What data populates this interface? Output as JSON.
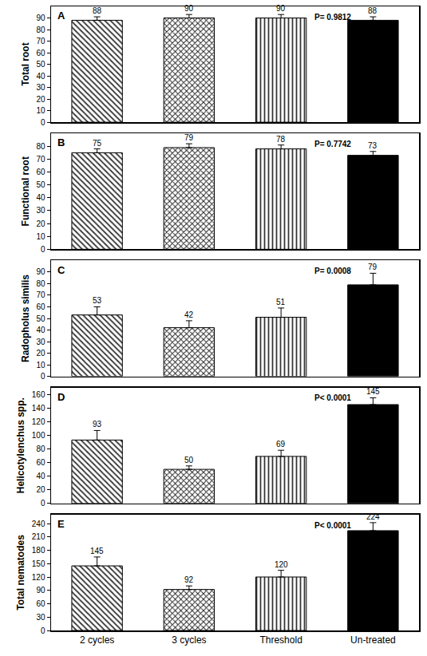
{
  "chart_data": [
    {
      "type": "bar",
      "title": "A",
      "y_label": "Total root",
      "categories": [
        "2 cycles",
        "3 cycles",
        "Threshold",
        "Un-treated"
      ],
      "values": [
        88,
        90,
        90,
        88
      ],
      "errors": [
        3,
        3,
        3,
        3
      ],
      "colors": [
        "#333333",
        "#222222",
        "#333333",
        "#000000"
      ],
      "ylim": [
        0,
        100
      ],
      "yticks": [
        0,
        10,
        20,
        30,
        40,
        50,
        60,
        70,
        80,
        90
      ],
      "annotations": [
        "P= 0.9812"
      ],
      "data_labels": true,
      "tick_labels": "y",
      "grid": false
    },
    {
      "type": "bar",
      "title": "B",
      "y_label": "Functional root",
      "categories": [
        "2 cycles",
        "3 cycles",
        "Threshold",
        "Un-treated"
      ],
      "values": [
        75,
        79,
        78,
        73
      ],
      "errors": [
        3,
        3,
        3,
        3
      ],
      "colors": [
        "#333333",
        "#222222",
        "#333333",
        "#000000"
      ],
      "ylim": [
        0,
        90
      ],
      "yticks": [
        0,
        10,
        20,
        30,
        40,
        50,
        60,
        70,
        80
      ],
      "annotations": [
        "P= 0.7742"
      ],
      "data_labels": true,
      "tick_labels": "y",
      "grid": false
    },
    {
      "type": "bar",
      "title": "C",
      "y_label": "Radopholus similis",
      "categories": [
        "2 cycles",
        "3 cycles",
        "Threshold",
        "Un-treated"
      ],
      "values": [
        53,
        42,
        51,
        79
      ],
      "errors": [
        7,
        6,
        8,
        10
      ],
      "colors": [
        "#333333",
        "#222222",
        "#333333",
        "#000000"
      ],
      "ylim": [
        0,
        100
      ],
      "yticks": [
        0,
        10,
        20,
        30,
        40,
        50,
        60,
        70,
        80,
        90
      ],
      "annotations": [
        "P= 0.0008"
      ],
      "data_labels": true,
      "tick_labels": "y",
      "grid": false
    },
    {
      "type": "bar",
      "title": "D",
      "y_label": "Helicotylenchus spp.",
      "categories": [
        "2 cycles",
        "3 cycles",
        "Threshold",
        "Un-treated"
      ],
      "values": [
        93,
        50,
        69,
        145
      ],
      "errors": [
        14,
        5,
        9,
        10
      ],
      "colors": [
        "#333333",
        "#222222",
        "#333333",
        "#000000"
      ],
      "ylim": [
        0,
        170
      ],
      "yticks": [
        0,
        20,
        40,
        60,
        80,
        100,
        120,
        140,
        160
      ],
      "annotations": [
        "P< 0.0001"
      ],
      "data_labels": true,
      "tick_labels": "y",
      "grid": false
    },
    {
      "type": "bar",
      "title": "E",
      "y_label": "Total nematodes",
      "categories": [
        "2 cycles",
        "3 cycles",
        "Threshold",
        "Un-treated"
      ],
      "values": [
        145,
        92,
        120,
        224
      ],
      "errors": [
        20,
        8,
        15,
        18
      ],
      "colors": [
        "#333333",
        "#222222",
        "#333333",
        "#000000"
      ],
      "ylim": [
        0,
        260
      ],
      "yticks": [
        0,
        30,
        60,
        90,
        120,
        150,
        180,
        210,
        240
      ],
      "annotations": [
        "P< 0.0001"
      ],
      "data_labels": true,
      "grid": false
    }
  ]
}
